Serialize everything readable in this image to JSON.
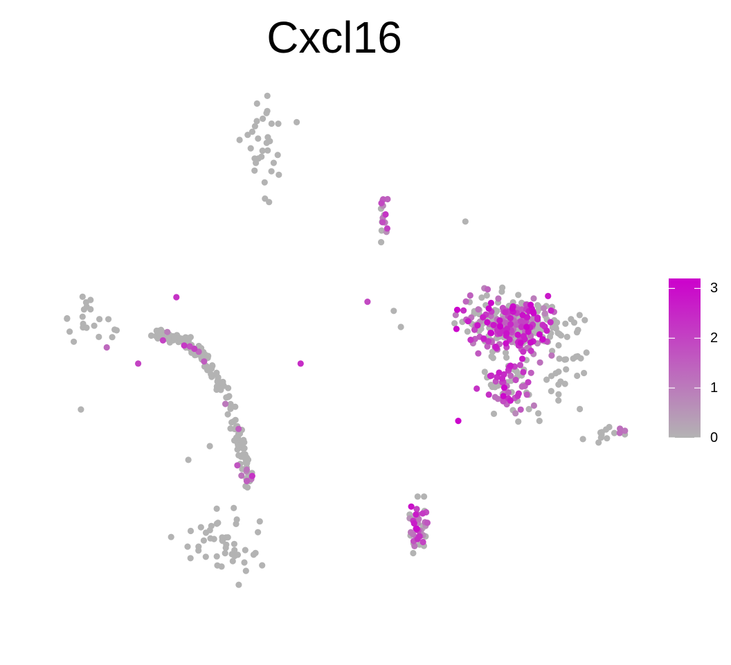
{
  "chart_data": {
    "type": "scatter",
    "title": "Cxcl16",
    "xlabel": "",
    "ylabel": "",
    "xlim": [
      -12,
      12
    ],
    "ylim": [
      -12,
      12
    ],
    "grid": false,
    "axes_visible": false,
    "colors": {
      "low": "#b3b3b3",
      "high": "#cc00cc"
    },
    "legend": {
      "position": "right",
      "type": "colorbar",
      "min": 0,
      "max": 3.2,
      "ticks": [
        0,
        1,
        2,
        3
      ],
      "tick_labels": [
        "0",
        "1",
        "2",
        "3"
      ]
    },
    "clusters": [
      {
        "center": [
          -10.0,
          1.5
        ],
        "spread": [
          1.2,
          1.2
        ],
        "n": 22,
        "expr_prob": 0.08,
        "expr_max": 2.5
      },
      {
        "center": [
          -5.0,
          -8.3
        ],
        "spread": [
          1.6,
          1.2
        ],
        "n": 45,
        "expr_prob": 0.0,
        "expr_max": 0
      },
      {
        "center": [
          -3.1,
          9.2
        ],
        "spread": [
          0.8,
          2.0
        ],
        "n": 32,
        "expr_prob": 0.0,
        "expr_max": 0
      },
      {
        "center": [
          2.0,
          6.2
        ],
        "spread": [
          0.2,
          0.9
        ],
        "n": 16,
        "expr_prob": 0.85,
        "expr_max": 2.3
      },
      {
        "center": [
          7.4,
          1.4
        ],
        "spread": [
          1.8,
          1.0
        ],
        "n": 340,
        "expr_prob": 0.5,
        "expr_max": 3.2
      },
      {
        "center": [
          7.2,
          -1.2
        ],
        "spread": [
          0.9,
          1.3
        ],
        "n": 80,
        "expr_prob": 0.6,
        "expr_max": 3.2
      },
      {
        "center": [
          9.6,
          -0.4
        ],
        "spread": [
          1.0,
          1.5
        ],
        "n": 30,
        "expr_prob": 0.1,
        "expr_max": 2.0
      },
      {
        "center": [
          11.4,
          -3.4
        ],
        "spread": [
          0.6,
          0.4
        ],
        "n": 14,
        "expr_prob": 0.2,
        "expr_max": 1.8
      },
      {
        "center": [
          3.4,
          -7.3
        ],
        "spread": [
          0.4,
          1.0
        ],
        "n": 45,
        "expr_prob": 0.65,
        "expr_max": 3.0
      }
    ],
    "curve": {
      "path": [
        [
          -7.6,
          1.0
        ],
        [
          -6.4,
          0.7
        ],
        [
          -5.6,
          0.0
        ],
        [
          -4.8,
          -1.3
        ],
        [
          -4.2,
          -3.0
        ],
        [
          -3.9,
          -4.4
        ],
        [
          -3.7,
          -5.6
        ]
      ],
      "n": 170,
      "jitter": 0.25,
      "expr_prob": 0.1,
      "expr_max": 2.3
    },
    "points": [
      [
        -6.7,
        2.6,
        2.3
      ],
      [
        -1.5,
        -0.3,
        2.4
      ],
      [
        1.3,
        2.4,
        1.9
      ],
      [
        2.4,
        2.0,
        0
      ],
      [
        2.7,
        1.3,
        0
      ],
      [
        5.4,
        5.9,
        0
      ],
      [
        5.1,
        -2.8,
        3.1
      ],
      [
        8.5,
        -2.8,
        0
      ],
      [
        8.8,
        -1.0,
        0
      ],
      [
        10.4,
        1.6,
        0
      ],
      [
        9.3,
        0.5,
        0
      ],
      [
        -8.3,
        -0.3,
        2.0
      ],
      [
        -10.7,
        -2.3,
        0
      ],
      [
        -5.3,
        -3.9,
        0
      ],
      [
        -6.2,
        -4.5,
        0
      ],
      [
        -4.3,
        -6.6,
        0
      ]
    ]
  }
}
